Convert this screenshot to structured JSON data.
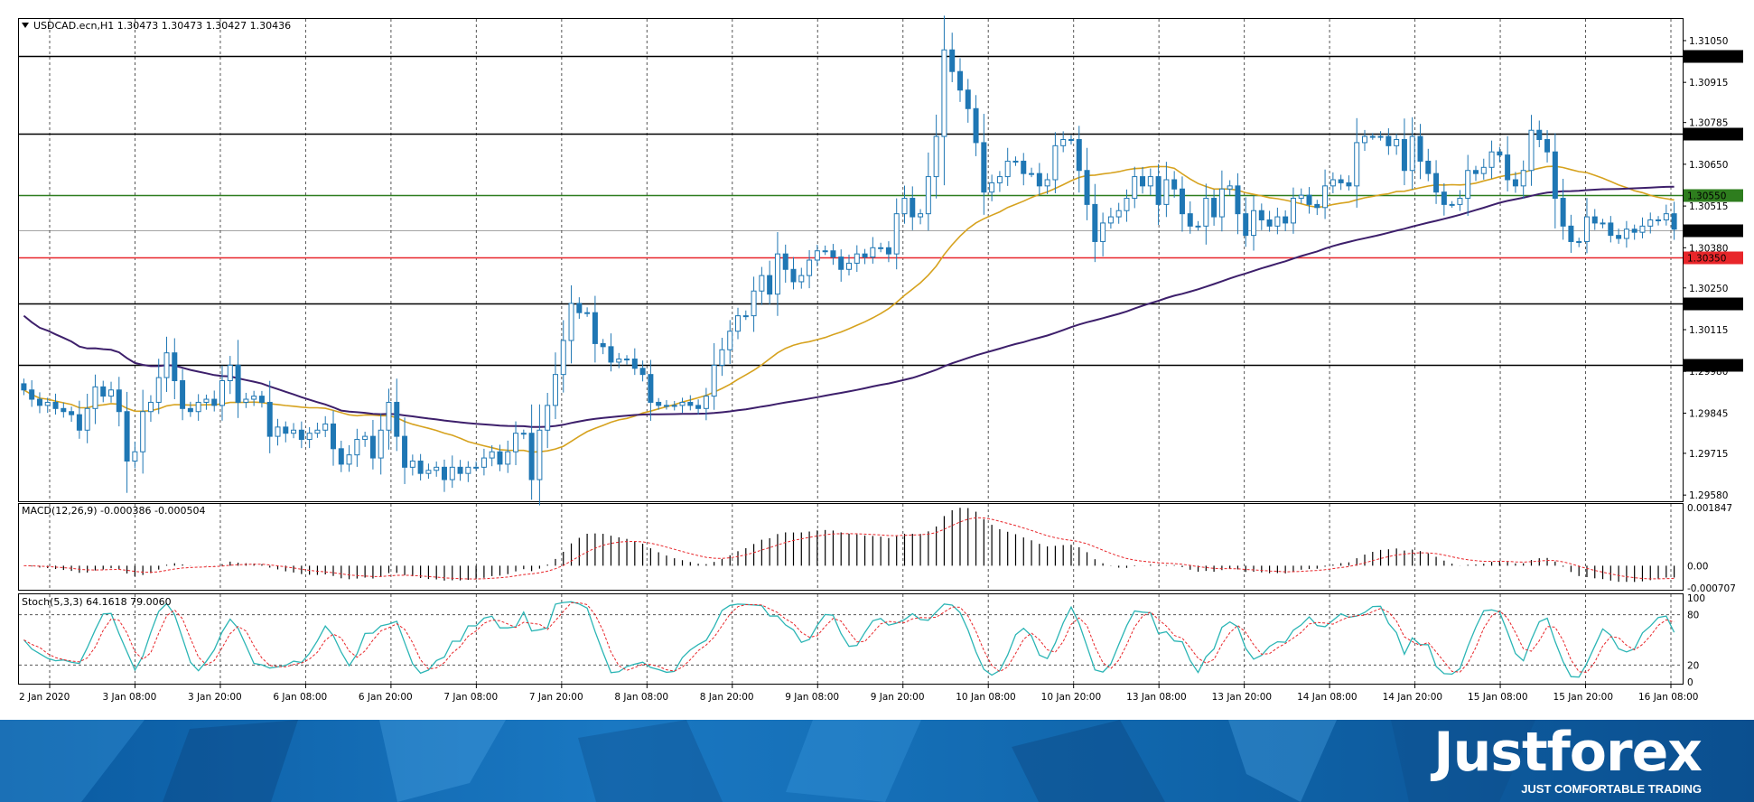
{
  "window": {
    "symbol_header": "USDCAD.ecn,H1  1.30473 1.30473 1.30427 1.30436"
  },
  "price_panel": {
    "y_ticks": [
      "1.31050",
      "1.30915",
      "1.30785",
      "1.30650",
      "1.30515",
      "1.30380",
      "1.30250",
      "1.30115",
      "1.29980",
      "1.29845",
      "1.29715",
      "1.29580"
    ],
    "levels": [
      {
        "value": 1.31,
        "label": "1.31000",
        "color": "#000000"
      },
      {
        "value": 1.3075,
        "label": "1.30750",
        "color": "#000000"
      },
      {
        "value": 1.3055,
        "label": "1.30550",
        "color": "#2e7d1e"
      },
      {
        "value": 1.3035,
        "label": "1.30350",
        "color": "#e8262a"
      },
      {
        "value": 1.302,
        "label": "1.30200",
        "color": "#000000"
      },
      {
        "value": 1.3,
        "label": "1.30000",
        "color": "#000000"
      }
    ],
    "current_price": {
      "value": 1.30436,
      "label": "1.30436",
      "color": "#000000"
    }
  },
  "macd_panel": {
    "header": "MACD(12,26,9) -0.000386 -0.000504",
    "y_ticks": [
      "0.001847",
      "0.00",
      "-0.000707"
    ]
  },
  "stoch_panel": {
    "header": "Stoch(5,3,3) 64.1618 79.0060",
    "y_ticks": [
      "100",
      "80",
      "20",
      "0"
    ]
  },
  "x_axis": {
    "ticks": [
      "2 Jan 2020",
      "3 Jan 08:00",
      "3 Jan 20:00",
      "6 Jan 08:00",
      "6 Jan 20:00",
      "7 Jan 08:00",
      "7 Jan 20:00",
      "8 Jan 08:00",
      "8 Jan 20:00",
      "9 Jan 08:00",
      "9 Jan 20:00",
      "10 Jan 08:00",
      "10 Jan 20:00",
      "13 Jan 08:00",
      "13 Jan 20:00",
      "14 Jan 08:00",
      "14 Jan 20:00",
      "15 Jan 08:00",
      "15 Jan 20:00",
      "16 Jan 08:00"
    ]
  },
  "brand": {
    "logo": "Justforex",
    "tagline": "JUST COMFORTABLE TRADING"
  },
  "colors": {
    "bull": "#1f77b4",
    "bear": "#1f77b4",
    "ma_fast": "#d6a21e",
    "ma_slow": "#3d1f6b",
    "macd_signal": "#e8262a",
    "stoch_main": "#2bb5b5",
    "stoch_signal": "#e8262a"
  },
  "chart_data": {
    "type": "candlestick",
    "symbol": "USDCAD.ecn",
    "timeframe": "H1",
    "ohlc_summary": {
      "open": 1.30473,
      "high": 1.30473,
      "low": 1.30427,
      "close": 1.30436
    },
    "y_range": [
      1.2956,
      1.3112
    ],
    "closes": [
      1.2992,
      1.2989,
      1.2987,
      1.2988,
      1.2986,
      1.2985,
      1.2984,
      1.2979,
      1.2986,
      1.2993,
      1.299,
      1.2992,
      1.2985,
      1.2969,
      1.2972,
      1.2985,
      1.2988,
      1.2996,
      1.3004,
      1.2995,
      1.2986,
      1.2985,
      1.2988,
      1.2989,
      1.2987,
      1.2995,
      1.3,
      1.2988,
      1.2989,
      1.299,
      1.2988,
      1.2977,
      1.298,
      1.2978,
      1.2979,
      1.2976,
      1.2978,
      1.2979,
      1.2981,
      1.2973,
      1.2968,
      1.2971,
      1.2976,
      1.2977,
      1.297,
      1.2979,
      1.2988,
      1.2977,
      1.2967,
      1.2969,
      1.2965,
      1.2966,
      1.2967,
      1.2963,
      1.2967,
      1.2965,
      1.2967,
      1.2967,
      1.297,
      1.2972,
      1.2968,
      1.2972,
      1.2978,
      1.2978,
      1.2963,
      1.2979,
      1.2987,
      1.2997,
      1.3008,
      1.302,
      1.3017,
      1.3017,
      1.3007,
      1.3006,
      1.3001,
      1.3002,
      1.3002,
      1.2999,
      1.2997,
      1.2988,
      1.2987,
      1.2987,
      1.2987,
      1.2988,
      1.2987,
      1.2986,
      1.299,
      1.3,
      1.3005,
      1.3011,
      1.3016,
      1.3016,
      1.3024,
      1.3029,
      1.3023,
      1.3036,
      1.3031,
      1.3027,
      1.3029,
      1.3034,
      1.3037,
      1.3037,
      1.3035,
      1.3031,
      1.3033,
      1.3036,
      1.3035,
      1.3038,
      1.3038,
      1.3036,
      1.3049,
      1.3054,
      1.3048,
      1.3049,
      1.3061,
      1.3074,
      1.3102,
      1.3095,
      1.3089,
      1.3083,
      1.3072,
      1.3056,
      1.3059,
      1.3061,
      1.3066,
      1.3066,
      1.3062,
      1.3062,
      1.3058,
      1.306,
      1.3071,
      1.3073,
      1.3073,
      1.3063,
      1.3052,
      1.304,
      1.3046,
      1.3048,
      1.305,
      1.3054,
      1.3061,
      1.3058,
      1.3061,
      1.3052,
      1.306,
      1.3057,
      1.3049,
      1.3045,
      1.3045,
      1.3054,
      1.3048,
      1.3057,
      1.3058,
      1.3049,
      1.3042,
      1.305,
      1.3047,
      1.3045,
      1.3048,
      1.3046,
      1.3054,
      1.3055,
      1.3052,
      1.3051,
      1.3058,
      1.306,
      1.3059,
      1.3058,
      1.3072,
      1.3074,
      1.3074,
      1.3074,
      1.3071,
      1.3073,
      1.3063,
      1.3074,
      1.3066,
      1.3062,
      1.3056,
      1.3052,
      1.3052,
      1.3054,
      1.3063,
      1.3062,
      1.3064,
      1.3069,
      1.3068,
      1.306,
      1.3058,
      1.3063,
      1.3076,
      1.3073,
      1.3069,
      1.3054,
      1.3045,
      1.304,
      1.304,
      1.3048,
      1.3046,
      1.3046,
      1.3042,
      1.3041,
      1.3044,
      1.3043,
      1.3045,
      1.3047,
      1.3047,
      1.3049,
      1.3044
    ]
  }
}
